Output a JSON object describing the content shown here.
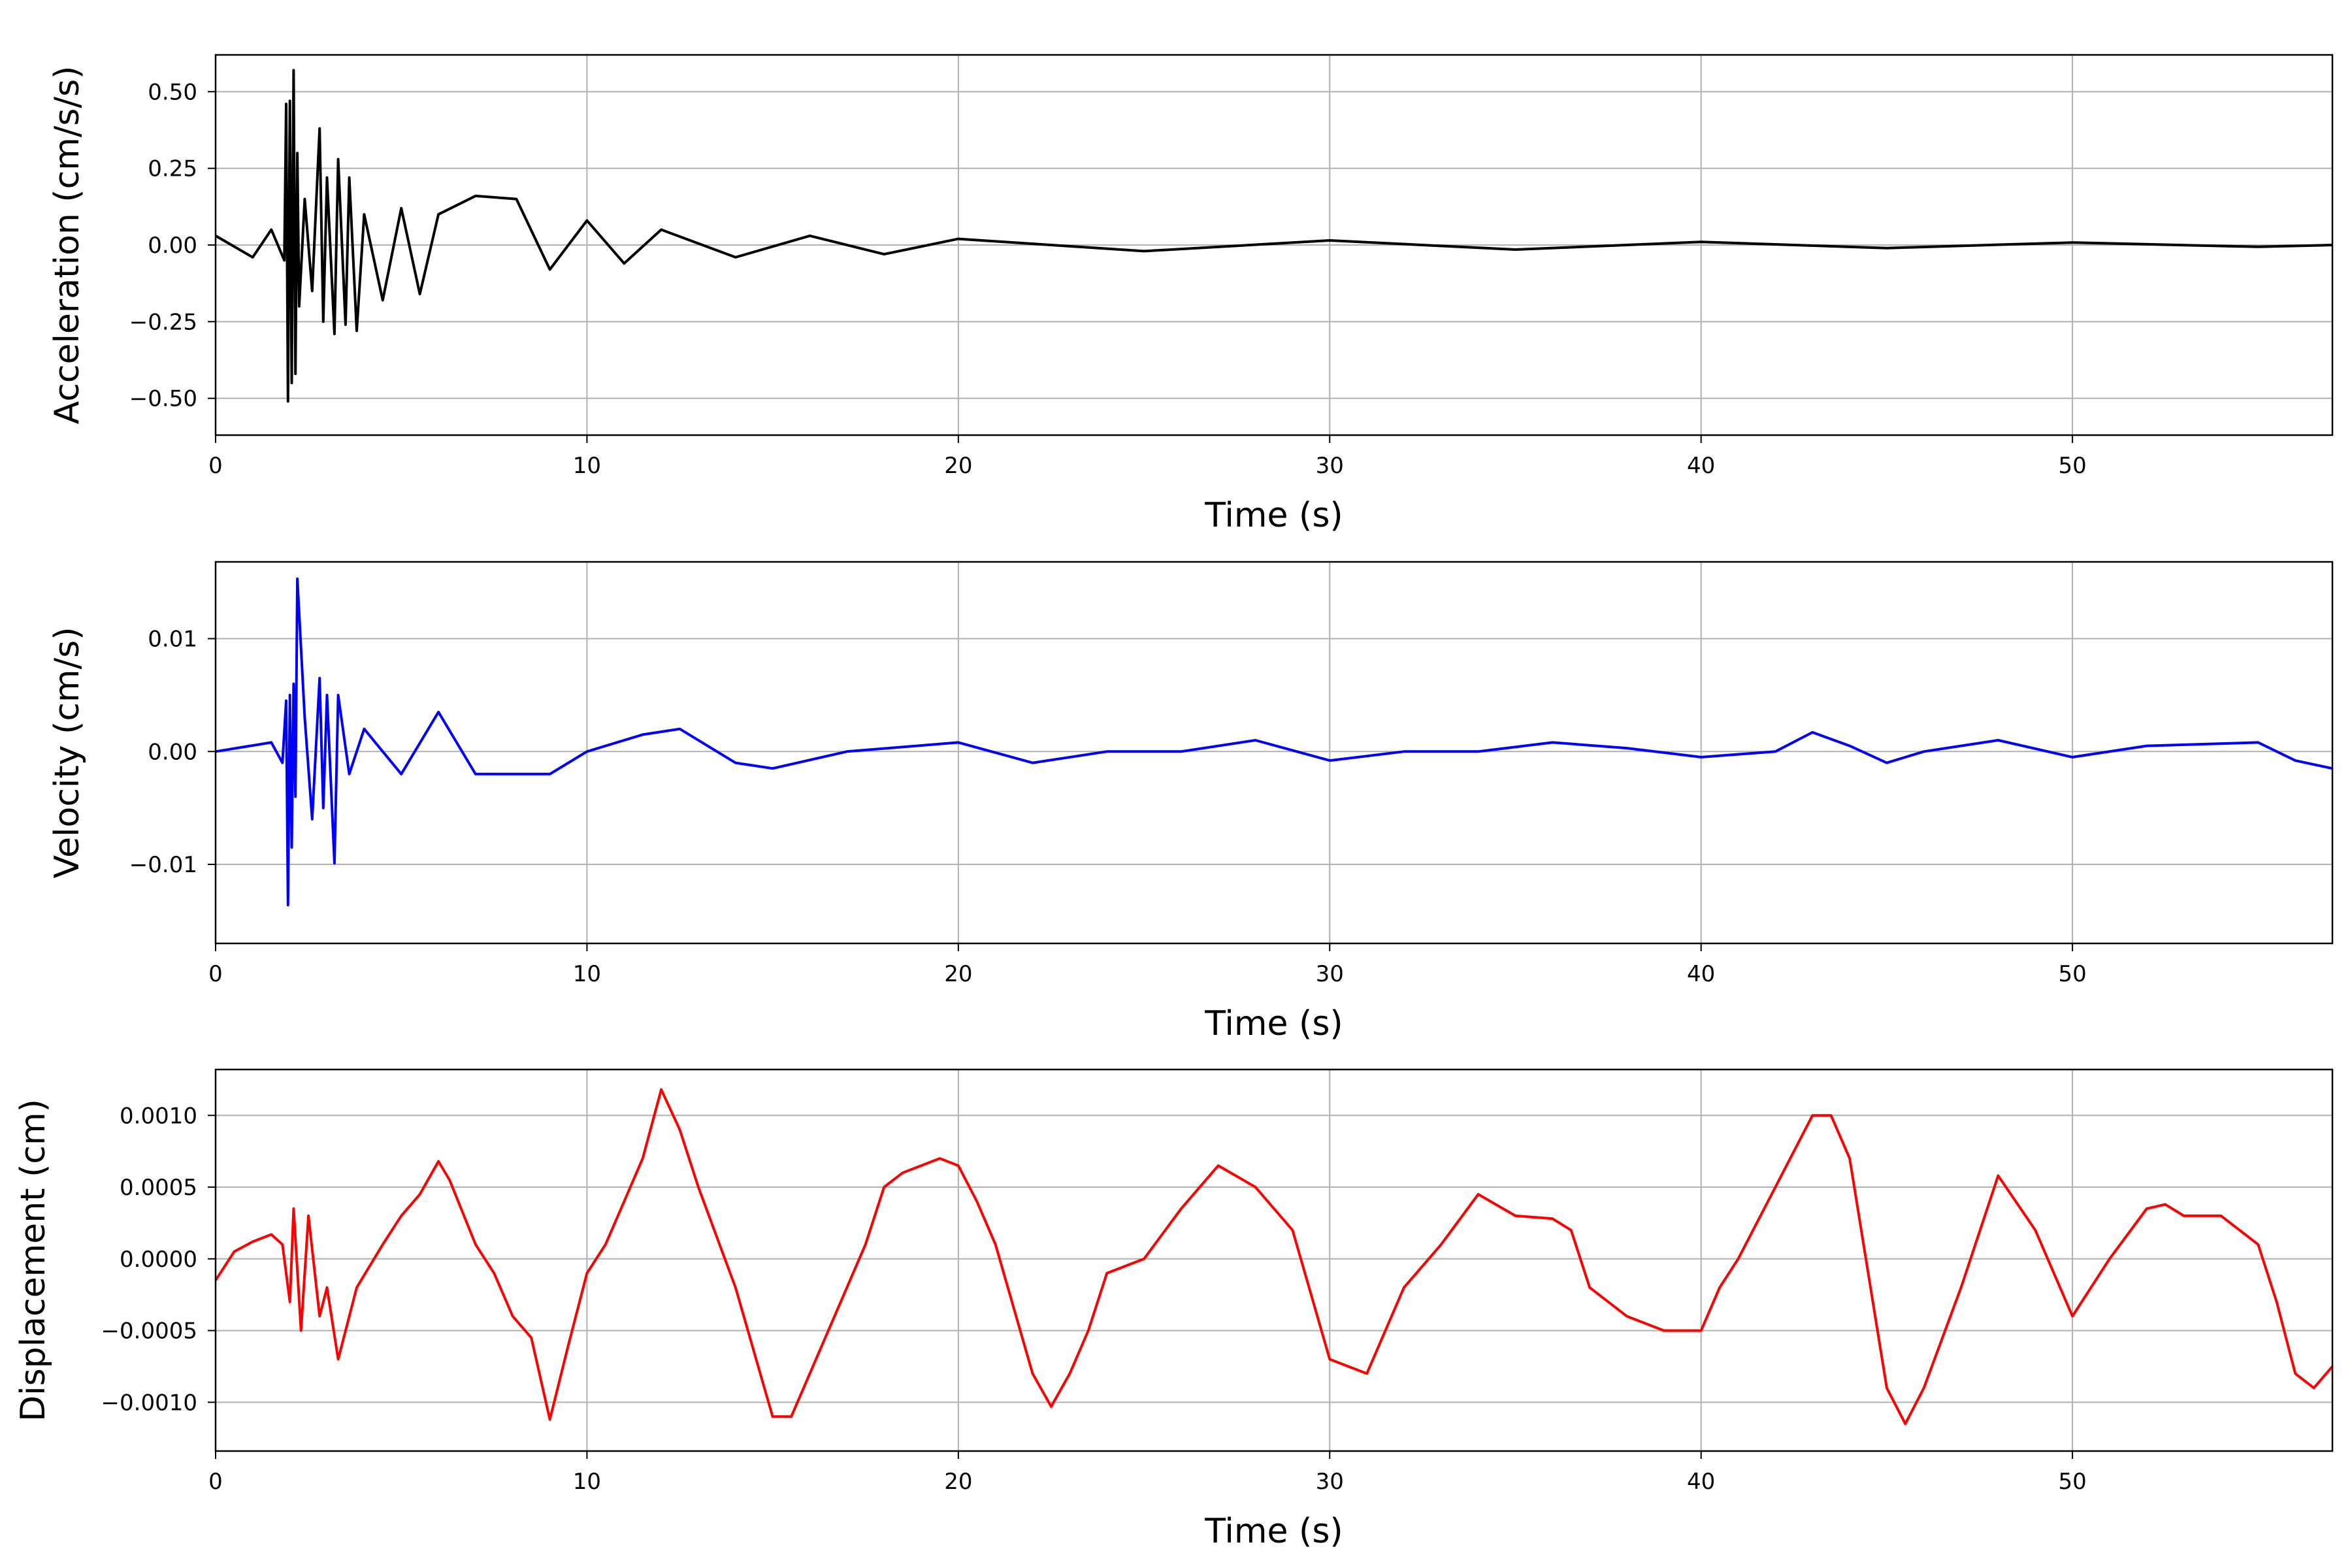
{
  "chart_data": [
    {
      "type": "line",
      "xlabel": "Time (s)",
      "ylabel": "Acceleration (cm/s/s)",
      "xlim": [
        0,
        57
      ],
      "ylim": [
        -0.62,
        0.62
      ],
      "xticks": [
        0,
        10,
        20,
        30,
        40,
        50
      ],
      "xtick_labels": [
        "0",
        "10",
        "20",
        "30",
        "40",
        "50"
      ],
      "yticks": [
        -0.5,
        -0.25,
        0.0,
        0.25,
        0.5
      ],
      "ytick_labels": [
        "−0.50",
        "−0.25",
        "0.00",
        "0.25",
        "0.50"
      ],
      "grid": true,
      "series": [
        {
          "color": "#000000",
          "x": [
            0,
            1,
            1.5,
            1.85,
            1.9,
            1.95,
            2.0,
            2.05,
            2.1,
            2.15,
            2.2,
            2.25,
            2.4,
            2.6,
            2.8,
            2.9,
            3.0,
            3.2,
            3.3,
            3.5,
            3.6,
            3.8,
            4.0,
            4.5,
            5.0,
            5.5,
            6.0,
            7.0,
            8.1,
            9,
            10,
            11,
            12,
            14,
            16,
            18,
            20,
            25,
            30,
            35,
            40,
            45,
            50,
            55,
            57
          ],
          "y": [
            0.03,
            -0.04,
            0.05,
            -0.05,
            0.46,
            -0.51,
            0.47,
            -0.45,
            0.57,
            -0.42,
            0.3,
            -0.2,
            0.15,
            -0.15,
            0.38,
            -0.25,
            0.22,
            -0.29,
            0.28,
            -0.26,
            0.22,
            -0.28,
            0.1,
            -0.18,
            0.12,
            -0.16,
            0.1,
            0.16,
            0.15,
            -0.08,
            0.08,
            -0.06,
            0.05,
            -0.04,
            0.03,
            -0.03,
            0.02,
            -0.02,
            0.015,
            -0.015,
            0.01,
            -0.01,
            0.008,
            -0.006,
            0.0
          ]
        }
      ]
    },
    {
      "type": "line",
      "xlabel": "Time (s)",
      "ylabel": "Velocity (cm/s)",
      "xlim": [
        0,
        57
      ],
      "ylim": [
        -0.017,
        0.0168
      ],
      "xticks": [
        0,
        10,
        20,
        30,
        40,
        50
      ],
      "xtick_labels": [
        "0",
        "10",
        "20",
        "30",
        "40",
        "50"
      ],
      "yticks": [
        -0.01,
        0.0,
        0.01
      ],
      "ytick_labels": [
        "−0.01",
        "0.00",
        "0.01"
      ],
      "grid": true,
      "series": [
        {
          "color": "#0000ff",
          "x": [
            0,
            1.5,
            1.8,
            1.9,
            1.95,
            2.0,
            2.05,
            2.1,
            2.15,
            2.2,
            2.4,
            2.6,
            2.8,
            2.9,
            3.0,
            3.2,
            3.3,
            3.6,
            4.0,
            5.0,
            6.0,
            7.0,
            8.0,
            9,
            10,
            11.5,
            12.5,
            14,
            15,
            17,
            20,
            22,
            24,
            26,
            28,
            30,
            32,
            34,
            36,
            38,
            40,
            42,
            43,
            44,
            45,
            46,
            48,
            50,
            52,
            55,
            56,
            57
          ],
          "y": [
            0.0,
            0.0008,
            -0.001,
            0.0045,
            -0.0136,
            0.005,
            -0.0085,
            0.006,
            -0.004,
            0.0153,
            0.003,
            -0.006,
            0.0065,
            -0.005,
            0.005,
            -0.0099,
            0.005,
            -0.002,
            0.002,
            -0.002,
            0.0035,
            -0.002,
            -0.002,
            -0.002,
            0.0,
            0.0015,
            0.002,
            -0.001,
            -0.0015,
            0.0,
            0.0008,
            -0.001,
            0.0,
            0.0,
            0.001,
            -0.0008,
            0.0,
            0.0,
            0.0008,
            0.0003,
            -0.0005,
            0.0,
            0.0017,
            0.0005,
            -0.001,
            0.0,
            0.001,
            -0.0005,
            0.0005,
            0.0008,
            -0.0008,
            -0.0015
          ]
        }
      ]
    },
    {
      "type": "line",
      "xlabel": "Time (s)",
      "ylabel": "Displacement (cm)",
      "xlim": [
        0,
        57
      ],
      "ylim": [
        -0.00134,
        0.00132
      ],
      "xticks": [
        0,
        10,
        20,
        30,
        40,
        50
      ],
      "xtick_labels": [
        "0",
        "10",
        "20",
        "30",
        "40",
        "50"
      ],
      "yticks": [
        -0.001,
        -0.0005,
        0.0,
        0.0005,
        0.001
      ],
      "ytick_labels": [
        "−0.0010",
        "−0.0005",
        "0.0000",
        "0.0005",
        "0.0010"
      ],
      "grid": true,
      "series": [
        {
          "color": "#ff0000",
          "x": [
            0,
            0.5,
            1.0,
            1.5,
            1.8,
            2.0,
            2.1,
            2.3,
            2.5,
            2.8,
            3.0,
            3.3,
            3.8,
            4.5,
            5.0,
            5.5,
            6.0,
            6.3,
            7.0,
            7.5,
            8.0,
            8.5,
            9.0,
            9.5,
            10.0,
            10.5,
            11.0,
            11.5,
            12.0,
            12.5,
            13.0,
            14.0,
            15.0,
            15.5,
            16.0,
            17.0,
            17.5,
            18.0,
            18.5,
            19.0,
            19.5,
            20.0,
            20.5,
            21.0,
            22.0,
            22.5,
            23.0,
            23.5,
            24.0,
            25.0,
            26.0,
            27.0,
            28.0,
            29.0,
            30.0,
            31.0,
            32.0,
            33.0,
            34.0,
            35.0,
            36.0,
            36.5,
            37.0,
            38.0,
            39.0,
            40.0,
            40.5,
            41.0,
            42.0,
            43.0,
            43.5,
            44.0,
            45.0,
            45.5,
            46.0,
            47.0,
            48.0,
            49.0,
            49.5,
            50.0,
            51.0,
            52.0,
            52.5,
            53.0,
            54.0,
            55.0,
            55.5,
            56.0,
            56.5,
            57.0
          ],
          "y": [
            -0.00015,
            5e-05,
            0.00012,
            0.00017,
            0.0001,
            -0.0003,
            0.00035,
            -0.0005,
            0.0003,
            -0.0004,
            -0.0002,
            -0.0007,
            -0.0002,
            0.0001,
            0.0003,
            0.00045,
            0.00068,
            0.00055,
            0.0001,
            -0.0001,
            -0.0004,
            -0.00055,
            -0.00112,
            -0.0006,
            -0.0001,
            0.0001,
            0.0004,
            0.0007,
            0.00118,
            0.0009,
            0.0005,
            -0.0002,
            -0.0011,
            -0.0011,
            -0.0008,
            -0.0002,
            0.0001,
            0.0005,
            0.0006,
            0.00065,
            0.0007,
            0.00065,
            0.0004,
            0.0001,
            -0.0008,
            -0.00103,
            -0.0008,
            -0.0005,
            -0.0001,
            0.0,
            0.00035,
            0.00065,
            0.0005,
            0.0002,
            -0.0007,
            -0.0008,
            -0.0002,
            0.0001,
            0.00045,
            0.0003,
            0.00028,
            0.0002,
            -0.0002,
            -0.0004,
            -0.0005,
            -0.0005,
            -0.0002,
            0.0,
            0.0005,
            0.001,
            0.001,
            0.0007,
            -0.0009,
            -0.00115,
            -0.0009,
            -0.0002,
            0.00058,
            0.0002,
            -0.0001,
            -0.0004,
            0.0,
            0.00035,
            0.00038,
            0.0003,
            0.0003,
            0.0001,
            -0.0003,
            -0.0008,
            -0.0009,
            -0.00075
          ]
        }
      ]
    }
  ]
}
